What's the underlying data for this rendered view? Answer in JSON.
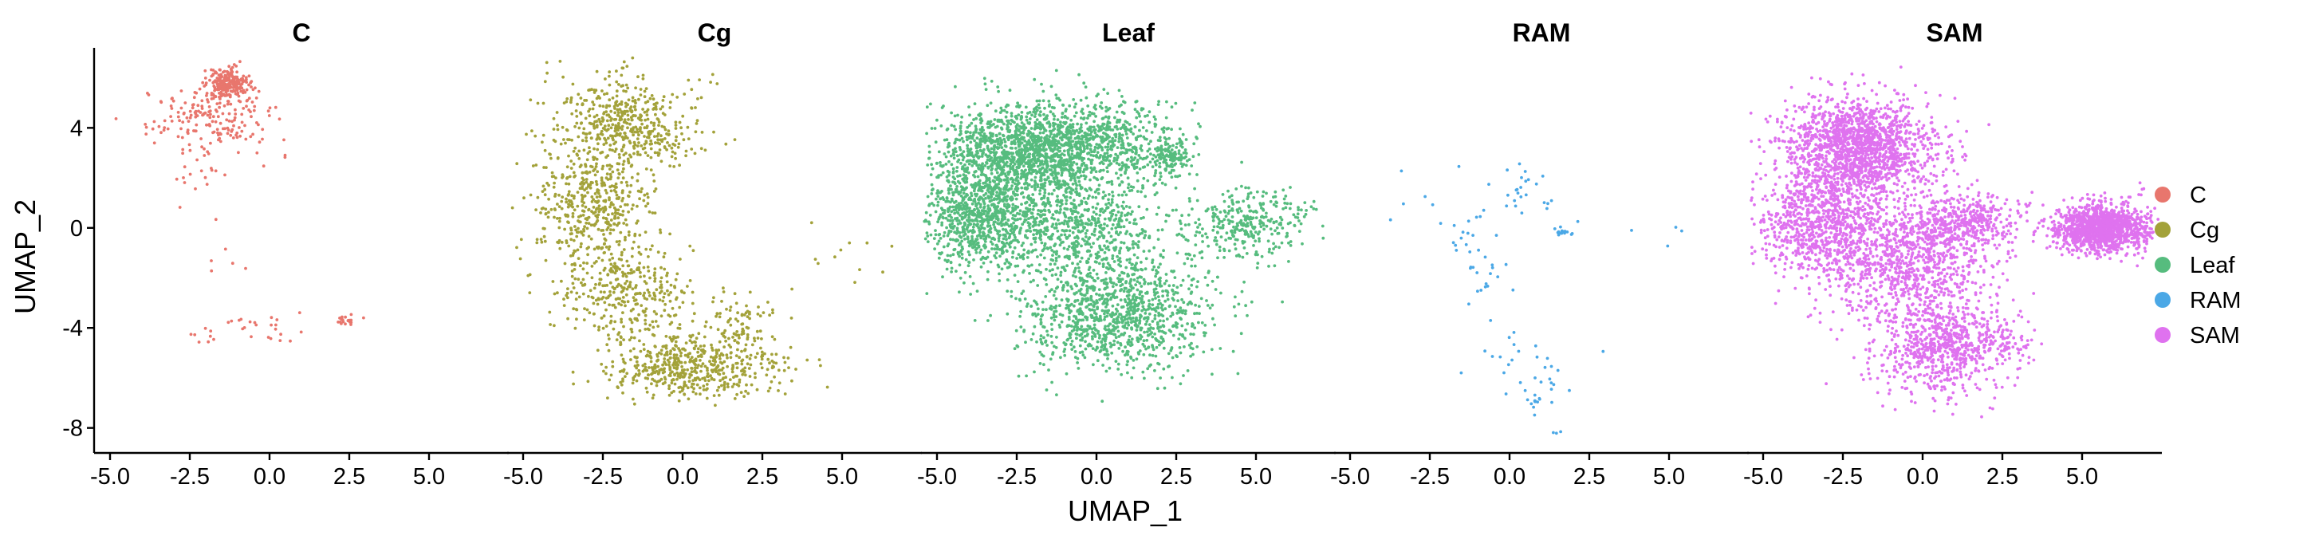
{
  "chart_data": {
    "type": "scatter",
    "xlabel": "UMAP_1",
    "ylabel": "UMAP_2",
    "xlim": [
      -5.5,
      7.5
    ],
    "ylim": [
      -9,
      7.2
    ],
    "x_ticks": [
      -5.0,
      -2.5,
      0.0,
      2.5,
      5.0
    ],
    "x_tick_labels": [
      "-5.0",
      "-2.5",
      "0.0",
      "2.5",
      "5.0"
    ],
    "y_ticks": [
      4,
      0,
      -4,
      -8
    ],
    "y_tick_labels": [
      "4",
      "0",
      "-4",
      "-8"
    ],
    "legend_position": "right",
    "facets": [
      {
        "title": "C",
        "color": "#E8766D",
        "clusters": [
          {
            "cx": -1.3,
            "cy": 5.8,
            "sx": 0.35,
            "sy": 0.3,
            "n": 220
          },
          {
            "cx": -1.7,
            "cy": 4.4,
            "sx": 1.0,
            "sy": 0.7,
            "n": 190
          },
          {
            "cx": -2.3,
            "cy": 2.0,
            "sx": 0.5,
            "sy": 0.8,
            "n": 18
          },
          {
            "cx": -0.6,
            "cy": -4.0,
            "sx": 1.0,
            "sy": 0.25,
            "n": 30
          },
          {
            "cx": 2.4,
            "cy": -3.7,
            "sx": 0.2,
            "sy": 0.12,
            "n": 20
          },
          {
            "cx": -1.5,
            "cy": -1.6,
            "sx": 0.6,
            "sy": 0.4,
            "n": 5
          }
        ]
      },
      {
        "title": "Cg",
        "color": "#A3A23A",
        "clusters": [
          {
            "cx": -1.8,
            "cy": 4.2,
            "sx": 1.1,
            "sy": 1.0,
            "n": 500
          },
          {
            "cx": -2.8,
            "cy": 0.8,
            "sx": 0.9,
            "sy": 1.2,
            "n": 450
          },
          {
            "cx": -1.8,
            "cy": -2.6,
            "sx": 1.0,
            "sy": 1.0,
            "n": 330
          },
          {
            "cx": 0.3,
            "cy": -5.6,
            "sx": 1.3,
            "sy": 0.6,
            "n": 520
          },
          {
            "cx": 1.8,
            "cy": -3.9,
            "sx": 0.6,
            "sy": 0.6,
            "n": 80
          },
          {
            "cx": 5.2,
            "cy": -1.3,
            "sx": 0.8,
            "sy": 0.8,
            "n": 12
          }
        ]
      },
      {
        "title": "Leaf",
        "color": "#56BC7E",
        "clusters": [
          {
            "cx": -2.5,
            "cy": 3.0,
            "sx": 1.3,
            "sy": 1.0,
            "n": 1200
          },
          {
            "cx": -3.8,
            "cy": 0.4,
            "sx": 0.8,
            "sy": 1.0,
            "n": 600
          },
          {
            "cx": -0.2,
            "cy": 3.4,
            "sx": 1.4,
            "sy": 0.8,
            "n": 700
          },
          {
            "cx": -1.2,
            "cy": 0.2,
            "sx": 1.6,
            "sy": 1.1,
            "n": 900
          },
          {
            "cx": 0.7,
            "cy": -3.4,
            "sx": 1.4,
            "sy": 1.2,
            "n": 1100
          },
          {
            "cx": 2.3,
            "cy": 2.8,
            "sx": 0.3,
            "sy": 0.4,
            "n": 120
          },
          {
            "cx": 4.7,
            "cy": 0.2,
            "sx": 1.0,
            "sy": 0.7,
            "n": 320
          }
        ]
      },
      {
        "title": "RAM",
        "color": "#4BA8E6",
        "clusters": [
          {
            "cx": -1.1,
            "cy": -1.3,
            "sx": 0.6,
            "sy": 0.9,
            "n": 35
          },
          {
            "cx": 0.6,
            "cy": 1.3,
            "sx": 0.6,
            "sy": 0.6,
            "n": 25
          },
          {
            "cx": 1.7,
            "cy": -0.2,
            "sx": 0.12,
            "sy": 0.12,
            "n": 14
          },
          {
            "cx": 0.6,
            "cy": -5.6,
            "sx": 0.9,
            "sy": 0.7,
            "n": 30
          },
          {
            "cx": 0.9,
            "cy": -6.9,
            "sx": 0.2,
            "sy": 0.12,
            "n": 10
          },
          {
            "cx": -2.7,
            "cy": 1.6,
            "sx": 0.5,
            "sy": 0.7,
            "n": 6
          },
          {
            "cx": 5.5,
            "cy": 0.2,
            "sx": 0.7,
            "sy": 0.4,
            "n": 4
          },
          {
            "cx": 1.5,
            "cy": -8.2,
            "sx": 0.06,
            "sy": 0.06,
            "n": 3
          }
        ]
      },
      {
        "title": "SAM",
        "color": "#DF72EF",
        "clusters": [
          {
            "cx": -2.0,
            "cy": 3.2,
            "sx": 1.2,
            "sy": 1.0,
            "n": 1600
          },
          {
            "cx": -3.2,
            "cy": 0.2,
            "sx": 1.0,
            "sy": 1.1,
            "n": 800
          },
          {
            "cx": -0.4,
            "cy": -1.2,
            "sx": 1.4,
            "sy": 1.4,
            "n": 1100
          },
          {
            "cx": 0.6,
            "cy": -4.8,
            "sx": 1.0,
            "sy": 0.9,
            "n": 700
          },
          {
            "cx": 2.8,
            "cy": -4.6,
            "sx": 0.4,
            "sy": 0.4,
            "n": 60
          },
          {
            "cx": 1.6,
            "cy": 0.3,
            "sx": 0.8,
            "sy": 0.5,
            "n": 300
          },
          {
            "cx": 5.6,
            "cy": 0.0,
            "sx": 0.75,
            "sy": 0.5,
            "n": 1300
          }
        ]
      }
    ],
    "legend": [
      {
        "label": "C",
        "color": "#E8766D"
      },
      {
        "label": "Cg",
        "color": "#A3A23A"
      },
      {
        "label": "Leaf",
        "color": "#56BC7E"
      },
      {
        "label": "RAM",
        "color": "#4BA8E6"
      },
      {
        "label": "SAM",
        "color": "#DF72EF"
      }
    ]
  }
}
